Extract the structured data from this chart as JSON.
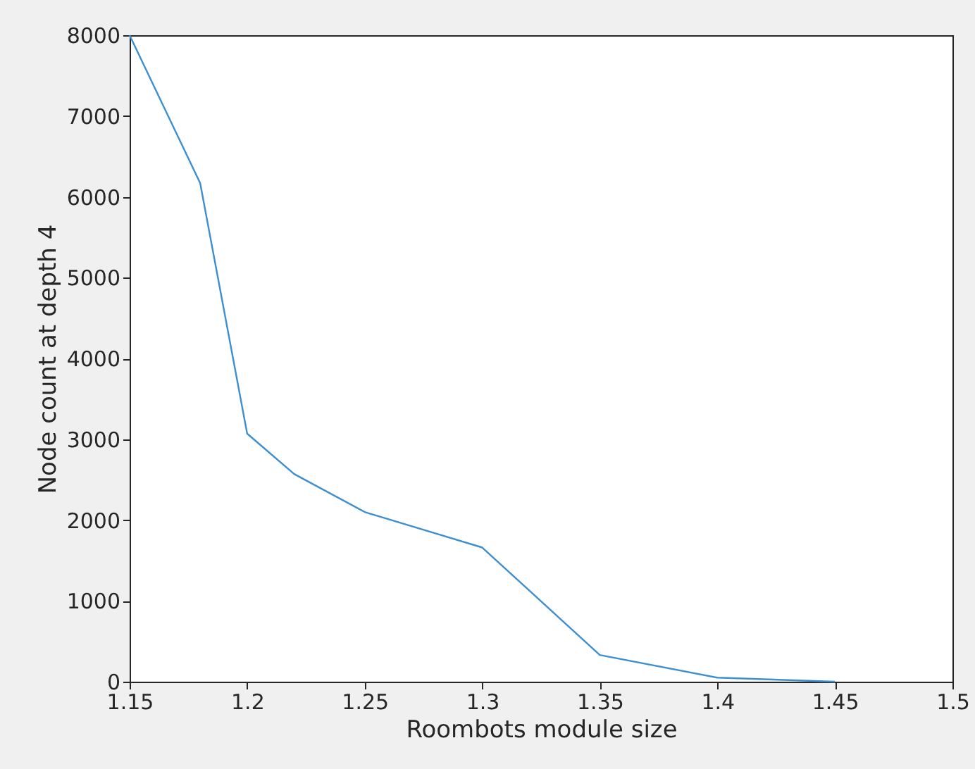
{
  "chart_data": {
    "type": "line",
    "xlabel": "Roombots module size",
    "ylabel": "Node count at depth 4",
    "x": [
      1.15,
      1.18,
      1.2,
      1.22,
      1.25,
      1.3,
      1.35,
      1.4,
      1.45
    ],
    "series": [
      {
        "color": "#3d8fd1",
        "values": [
          8000,
          6170,
          3070,
          2570,
          2100,
          1660,
          330,
          50,
          0
        ]
      }
    ],
    "xlim": [
      1.15,
      1.5
    ],
    "xticks": [
      1.15,
      1.2,
      1.25,
      1.3,
      1.35,
      1.4,
      1.45,
      1.5
    ],
    "ylim": [
      0,
      8000
    ],
    "yticks": [
      0,
      1000,
      2000,
      3000,
      4000,
      5000,
      6000,
      7000,
      8000
    ],
    "grid": false,
    "marker": "none",
    "line_style": "solid"
  }
}
